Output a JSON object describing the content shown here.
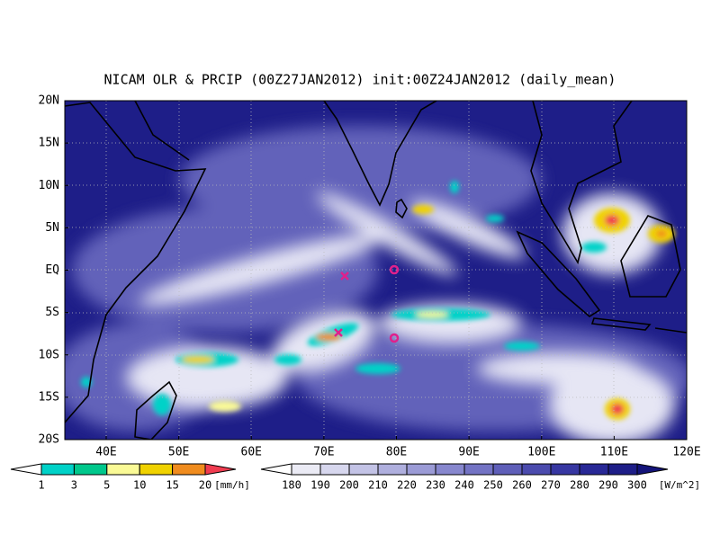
{
  "title": "NICAM OLR & PRCIP (00Z27JAN2012) init:00Z24JAN2012 (daily_mean)",
  "map": {
    "lat_labels": [
      "20N",
      "15N",
      "10N",
      "5N",
      "EQ",
      "5S",
      "10S",
      "15S",
      "20S"
    ],
    "lon_labels": [
      "40E",
      "50E",
      "60E",
      "70E",
      "80E",
      "90E",
      "100E",
      "110E",
      "120E"
    ]
  },
  "colorbars": [
    {
      "ticks": [
        1,
        3,
        5,
        10,
        15,
        20
      ],
      "unit": "[mm/h]",
      "colors": [
        "#ffffff",
        "#00d2c8",
        "#00c88c",
        "#fafa96",
        "#f0d200",
        "#f08c1e",
        "#f03c50"
      ]
    },
    {
      "ticks": [
        180,
        190,
        200,
        210,
        220,
        230,
        240,
        250,
        260,
        270,
        280,
        290,
        300
      ],
      "unit": "[W/m^2]",
      "colors": [
        "#ffffff",
        "#ebebf5",
        "#d7d7ee",
        "#c3c3e6",
        "#afafde",
        "#9b9bd6",
        "#8787ce",
        "#7373c4",
        "#5f5fb9",
        "#4b4bae",
        "#3737a2",
        "#282896",
        "#1e1e88",
        "#14147a"
      ]
    }
  ]
}
